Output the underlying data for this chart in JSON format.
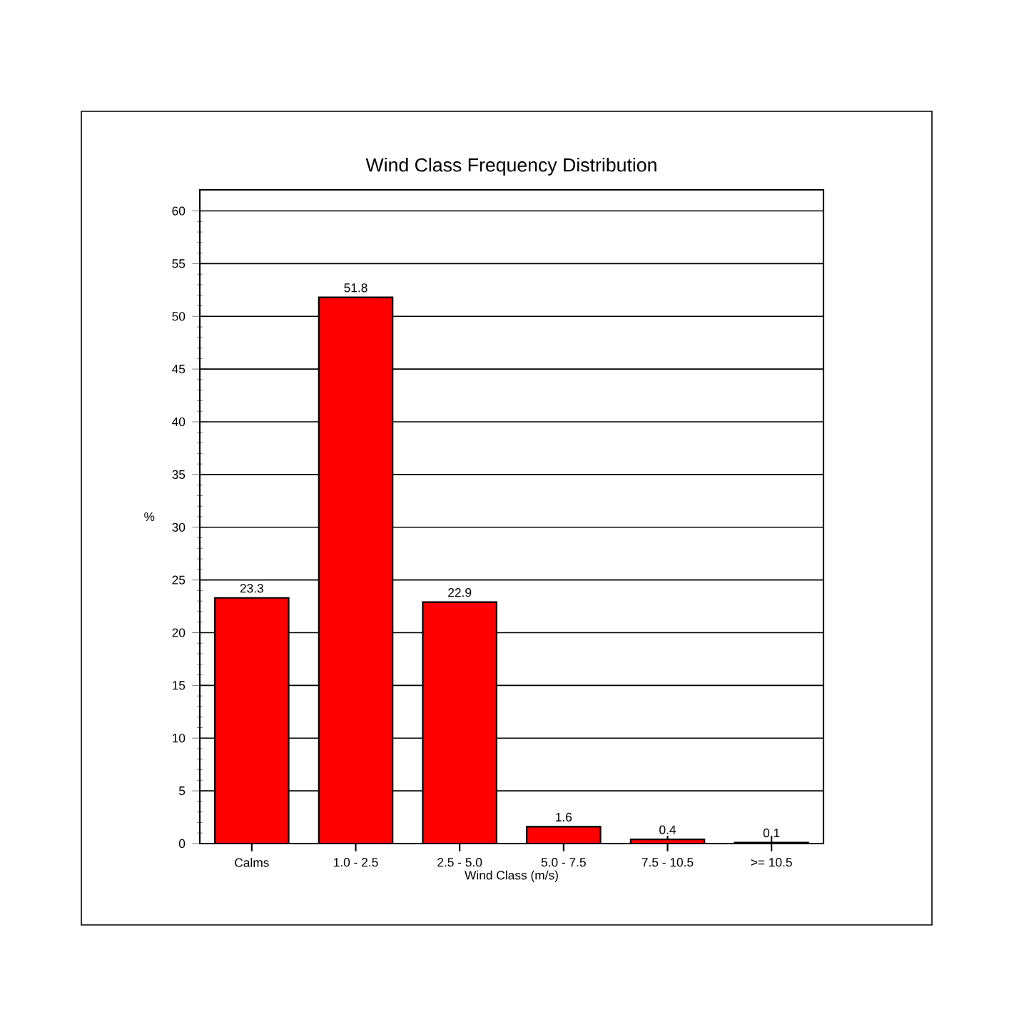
{
  "chart_data": {
    "type": "bar",
    "title": "Wind Class Frequency Distribution",
    "xlabel": "Wind Class (m/s)",
    "ylabel": "%",
    "categories": [
      "Calms",
      "1.0 - 2.5",
      "2.5 - 5.0",
      "5.0 - 7.5",
      "7.5 - 10.5",
      ">= 10.5"
    ],
    "values": [
      23.3,
      51.8,
      22.9,
      1.6,
      0.4,
      0.1
    ],
    "color": "#ff0000",
    "ylim": [
      0,
      62
    ],
    "yticks": [
      0,
      5,
      10,
      15,
      20,
      25,
      30,
      35,
      40,
      45,
      50,
      55,
      60
    ],
    "grid": "y",
    "data_labels": true
  }
}
